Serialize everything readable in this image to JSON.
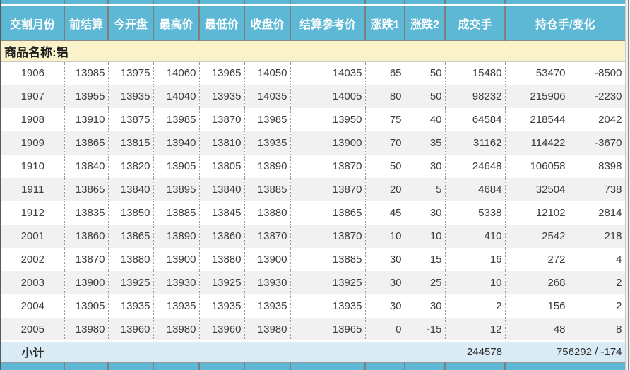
{
  "header": {
    "columns": [
      "交割月份",
      "前结算",
      "今开盘",
      "最高价",
      "最低价",
      "收盘价",
      "结算参考价",
      "涨跌1",
      "涨跌2",
      "成交手",
      "持仓手/变化"
    ]
  },
  "section": {
    "product_label": "商品名称:铝"
  },
  "rows": [
    {
      "month": "1906",
      "prev_settle": "13985",
      "open": "13975",
      "high": "14060",
      "low": "13965",
      "close": "14050",
      "settle_ref": "14035",
      "chg1": "65",
      "chg2": "50",
      "volume": "15480",
      "open_interest": "53470",
      "oi_change": "-8500"
    },
    {
      "month": "1907",
      "prev_settle": "13955",
      "open": "13935",
      "high": "14040",
      "low": "13935",
      "close": "14035",
      "settle_ref": "14005",
      "chg1": "80",
      "chg2": "50",
      "volume": "98232",
      "open_interest": "215906",
      "oi_change": "-2230"
    },
    {
      "month": "1908",
      "prev_settle": "13910",
      "open": "13875",
      "high": "13985",
      "low": "13870",
      "close": "13985",
      "settle_ref": "13950",
      "chg1": "75",
      "chg2": "40",
      "volume": "64584",
      "open_interest": "218544",
      "oi_change": "2042"
    },
    {
      "month": "1909",
      "prev_settle": "13865",
      "open": "13815",
      "high": "13940",
      "low": "13810",
      "close": "13935",
      "settle_ref": "13900",
      "chg1": "70",
      "chg2": "35",
      "volume": "31162",
      "open_interest": "114422",
      "oi_change": "-3670"
    },
    {
      "month": "1910",
      "prev_settle": "13840",
      "open": "13820",
      "high": "13905",
      "low": "13805",
      "close": "13890",
      "settle_ref": "13870",
      "chg1": "50",
      "chg2": "30",
      "volume": "24648",
      "open_interest": "106058",
      "oi_change": "8398"
    },
    {
      "month": "1911",
      "prev_settle": "13865",
      "open": "13840",
      "high": "13895",
      "low": "13840",
      "close": "13885",
      "settle_ref": "13870",
      "chg1": "20",
      "chg2": "5",
      "volume": "4684",
      "open_interest": "32504",
      "oi_change": "738"
    },
    {
      "month": "1912",
      "prev_settle": "13835",
      "open": "13850",
      "high": "13885",
      "low": "13845",
      "close": "13880",
      "settle_ref": "13865",
      "chg1": "45",
      "chg2": "30",
      "volume": "5338",
      "open_interest": "12102",
      "oi_change": "2814"
    },
    {
      "month": "2001",
      "prev_settle": "13860",
      "open": "13865",
      "high": "13890",
      "low": "13860",
      "close": "13870",
      "settle_ref": "13870",
      "chg1": "10",
      "chg2": "10",
      "volume": "410",
      "open_interest": "2542",
      "oi_change": "218"
    },
    {
      "month": "2002",
      "prev_settle": "13870",
      "open": "13880",
      "high": "13900",
      "low": "13880",
      "close": "13900",
      "settle_ref": "13885",
      "chg1": "30",
      "chg2": "15",
      "volume": "16",
      "open_interest": "272",
      "oi_change": "4"
    },
    {
      "month": "2003",
      "prev_settle": "13900",
      "open": "13925",
      "high": "13930",
      "low": "13925",
      "close": "13930",
      "settle_ref": "13925",
      "chg1": "30",
      "chg2": "25",
      "volume": "10",
      "open_interest": "268",
      "oi_change": "2"
    },
    {
      "month": "2004",
      "prev_settle": "13905",
      "open": "13935",
      "high": "13935",
      "low": "13935",
      "close": "13935",
      "settle_ref": "13935",
      "chg1": "30",
      "chg2": "30",
      "volume": "2",
      "open_interest": "156",
      "oi_change": "2"
    },
    {
      "month": "2005",
      "prev_settle": "13980",
      "open": "13960",
      "high": "13980",
      "low": "13960",
      "close": "13980",
      "settle_ref": "13965",
      "chg1": "0",
      "chg2": "-15",
      "volume": "12",
      "open_interest": "48",
      "oi_change": "8"
    }
  ],
  "subtotal": {
    "label": "小计",
    "volume": "244578",
    "open_interest_change": "756292 / -174"
  },
  "colors": {
    "header_bg": "#5cb8d4",
    "header_text": "#ffffff",
    "product_band_bg": "#faf3c9",
    "row_alt_bg": "#f1f1f1",
    "subtotal_bg": "#d9ecf6",
    "cell_text": "#3c3c3c",
    "header_border": "#7f7f7f"
  }
}
